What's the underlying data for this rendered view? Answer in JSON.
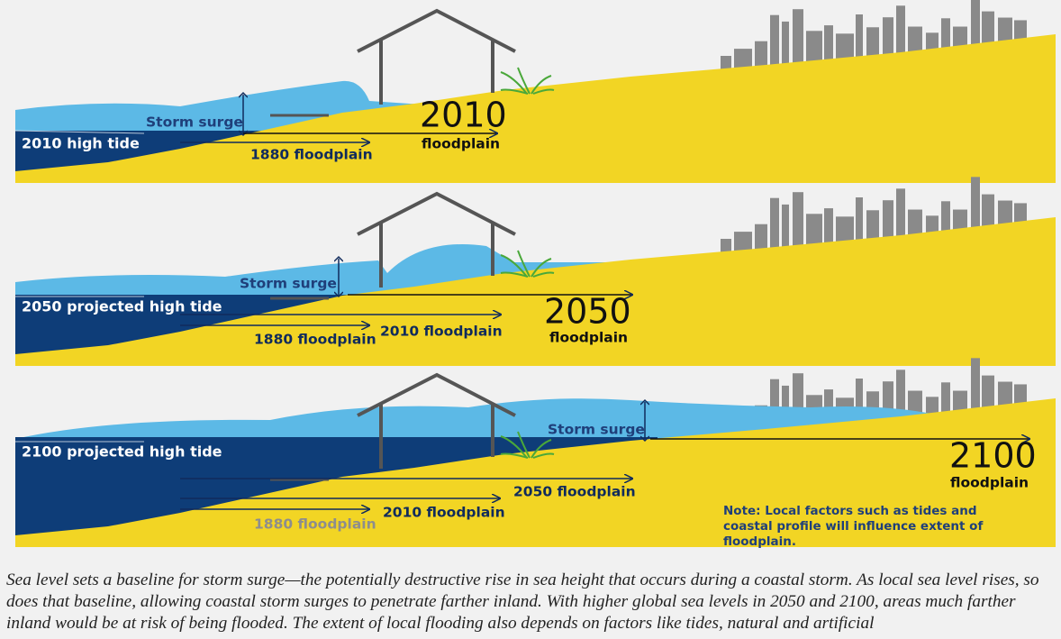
{
  "panels": [
    {
      "high_tide": "2010 high tide",
      "storm_surge": "Storm surge",
      "floodplains": [
        "1880 floodplain"
      ],
      "year": "2010",
      "year_sub": "floodplain"
    },
    {
      "high_tide": "2050 projected high tide",
      "storm_surge": "Storm surge",
      "floodplains": [
        "1880 floodplain",
        "2010 floodplain"
      ],
      "year": "2050",
      "year_sub": "floodplain"
    },
    {
      "high_tide": "2100 projected high tide",
      "storm_surge": "Storm surge",
      "floodplains": [
        "1880 floodplain",
        "2010 floodplain",
        "2050 floodplain"
      ],
      "year": "2100",
      "year_sub": "floodplain",
      "note": "Note: Local factors such as tides and coastal profile will influence extent of floodplain."
    }
  ],
  "caption": "Sea level sets a baseline for storm surge—the potentially destructive rise in sea height that occurs during a coastal storm. As local sea level rises, so does that baseline, allowing coastal storm surges to penetrate farther inland. With higher global sea levels in 2050 and 2100, areas much farther inland would be at risk of being flooded. The extent of local flooding also depends on factors like tides, natural and artificial"
}
